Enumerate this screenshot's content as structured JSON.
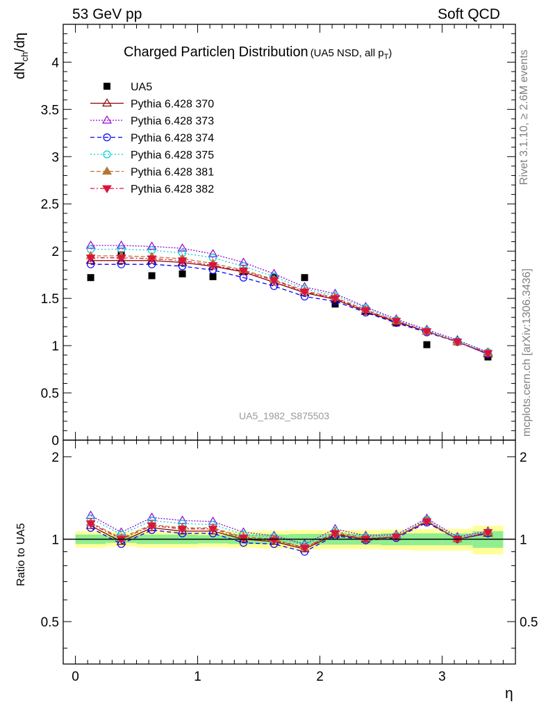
{
  "header": {
    "left": "53 GeV pp",
    "right": "Soft QCD"
  },
  "side_labels": {
    "rivet": "Rivet 3.1.10, ≥ 2.6M events",
    "mcplots": "mcplots.cern.ch [arXiv:1306.3436]"
  },
  "colors": {
    "UA5": "#000000",
    "Pythia 6.428 370": "#8b0000",
    "Pythia 6.428 373": "#9400d3",
    "Pythia 6.428 374": "#0000ff",
    "Pythia 6.428 375": "#00ced1",
    "Pythia 6.428 381": "#b87333",
    "Pythia 6.428 382": "#dc143c",
    "band_inner": "#90ee90",
    "band_outer": "#ffff99"
  },
  "chart_data": [
    {
      "type": "scatter",
      "title": "Charged Particleη Distribution",
      "title_note": "(UA5 NSD, all p",
      "title_note_sub": "T",
      "title_note_end": ")",
      "ylabel": "dN",
      "ylabel_sub": "ch",
      "ylabel_end": "/dη",
      "watermark": "UA5_1982_S875503",
      "xlim": [
        -0.1,
        3.6
      ],
      "ylim": [
        0,
        4.4
      ],
      "x": [
        0.125,
        0.375,
        0.625,
        0.875,
        1.125,
        1.375,
        1.625,
        1.875,
        2.125,
        2.375,
        2.625,
        2.875,
        3.125,
        3.375
      ],
      "yticks": [
        "0",
        "0.5",
        "1",
        "1.5",
        "2",
        "2.5",
        "3",
        "3.5",
        "4"
      ],
      "legend_position": "top-left",
      "series": [
        {
          "name": "UA5",
          "values": [
            1.72,
            1.96,
            1.74,
            1.76,
            1.73,
            1.79,
            1.72,
            1.72,
            1.44,
            1.37,
            1.24,
            1.01,
            1.04,
            0.88
          ]
        },
        {
          "name": "Pythia 6.428 370",
          "values": [
            1.9,
            1.9,
            1.9,
            1.88,
            1.84,
            1.78,
            1.67,
            1.56,
            1.49,
            1.36,
            1.25,
            1.15,
            1.04,
            0.91
          ]
        },
        {
          "name": "Pythia 6.428 373",
          "values": [
            2.06,
            2.06,
            2.05,
            2.03,
            1.97,
            1.88,
            1.76,
            1.62,
            1.55,
            1.41,
            1.28,
            1.17,
            1.06,
            0.93
          ]
        },
        {
          "name": "Pythia 6.428 374",
          "values": [
            1.86,
            1.86,
            1.86,
            1.84,
            1.8,
            1.72,
            1.63,
            1.52,
            1.47,
            1.35,
            1.24,
            1.14,
            1.04,
            0.91
          ]
        },
        {
          "name": "Pythia 6.428 375",
          "values": [
            2.02,
            2.02,
            2.01,
            1.98,
            1.93,
            1.84,
            1.73,
            1.6,
            1.53,
            1.4,
            1.27,
            1.16,
            1.05,
            0.93
          ]
        },
        {
          "name": "Pythia 6.428 381",
          "values": [
            1.95,
            1.95,
            1.94,
            1.92,
            1.87,
            1.8,
            1.7,
            1.58,
            1.51,
            1.38,
            1.26,
            1.15,
            1.04,
            0.92
          ]
        },
        {
          "name": "Pythia 6.428 382",
          "values": [
            1.93,
            1.93,
            1.92,
            1.9,
            1.85,
            1.79,
            1.69,
            1.57,
            1.5,
            1.37,
            1.26,
            1.15,
            1.04,
            0.92
          ]
        }
      ]
    },
    {
      "type": "line",
      "ylabel": "Ratio to UA5",
      "xlabel": "η",
      "xlim": [
        -0.1,
        3.6
      ],
      "ylim": [
        0.35,
        2.3
      ],
      "x": [
        0.125,
        0.375,
        0.625,
        0.875,
        1.125,
        1.375,
        1.625,
        1.875,
        2.125,
        2.375,
        2.625,
        2.875,
        3.125,
        3.375
      ],
      "xticks": [
        "0",
        "1",
        "2",
        "3"
      ],
      "yticks": [
        "0.5",
        "1",
        "2"
      ],
      "band_inner": [
        0.04,
        0.03,
        0.04,
        0.04,
        0.035,
        0.04,
        0.04,
        0.045,
        0.045,
        0.045,
        0.05,
        0.05,
        0.05,
        0.07
      ],
      "band_outer": [
        0.07,
        0.06,
        0.07,
        0.07,
        0.065,
        0.07,
        0.075,
        0.08,
        0.08,
        0.08,
        0.085,
        0.09,
        0.09,
        0.12
      ],
      "series": [
        {
          "name": "Pythia 6.428 370",
          "values": [
            1.12,
            0.98,
            1.1,
            1.07,
            1.07,
            1.0,
            0.98,
            0.92,
            1.04,
            1.0,
            1.02,
            1.16,
            1.0,
            1.05
          ]
        },
        {
          "name": "Pythia 6.428 373",
          "values": [
            1.22,
            1.06,
            1.2,
            1.17,
            1.16,
            1.06,
            1.03,
            0.96,
            1.09,
            1.03,
            1.04,
            1.19,
            1.02,
            1.07
          ]
        },
        {
          "name": "Pythia 6.428 374",
          "values": [
            1.1,
            0.96,
            1.08,
            1.05,
            1.05,
            0.97,
            0.96,
            0.9,
            1.03,
            0.99,
            1.01,
            1.15,
            1.0,
            1.05
          ]
        },
        {
          "name": "Pythia 6.428 375",
          "values": [
            1.19,
            1.04,
            1.17,
            1.14,
            1.13,
            1.04,
            1.02,
            0.95,
            1.07,
            1.02,
            1.03,
            1.18,
            1.01,
            1.06
          ]
        },
        {
          "name": "Pythia 6.428 381",
          "values": [
            1.15,
            1.01,
            1.13,
            1.1,
            1.1,
            1.02,
            1.0,
            0.93,
            1.06,
            1.01,
            1.02,
            1.17,
            1.0,
            1.06
          ]
        },
        {
          "name": "Pythia 6.428 382",
          "values": [
            1.14,
            1.0,
            1.12,
            1.09,
            1.09,
            1.01,
            0.99,
            0.93,
            1.05,
            1.0,
            1.02,
            1.16,
            1.0,
            1.06
          ]
        }
      ]
    }
  ]
}
